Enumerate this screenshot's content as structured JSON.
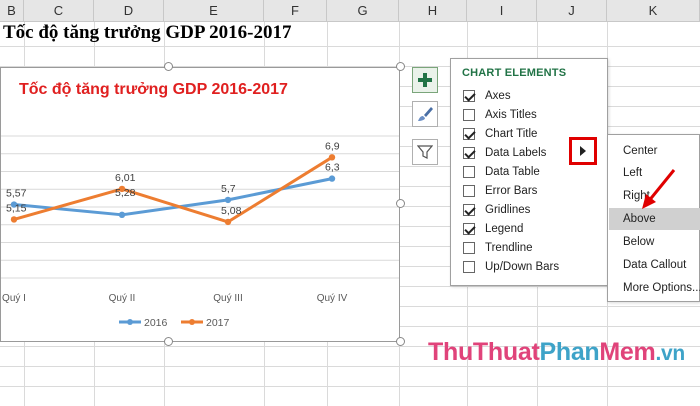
{
  "sheet": {
    "columns": [
      "B",
      "C",
      "D",
      "E",
      "F",
      "G",
      "H",
      "I",
      "J",
      "K"
    ],
    "title_cell": "Tốc độ tăng trưởng GDP 2016-2017"
  },
  "chart": {
    "title": "Tốc độ tăng trưởng GDP 2016-2017",
    "title_color": "#e02020"
  },
  "chart_data": {
    "type": "line",
    "title": "Tốc độ tăng trưởng GDP 2016-2017",
    "categories": [
      "Quý I",
      "Quý II",
      "Quý III",
      "Quý IV"
    ],
    "series": [
      {
        "name": "2016",
        "values": [
          5.57,
          5.28,
          5.7,
          6.3
        ],
        "color": "#5b9bd5",
        "labels": [
          "5,57",
          "",
          "5,7",
          "6,3"
        ]
      },
      {
        "name": "2017",
        "values": [
          5.15,
          6.01,
          5.08,
          6.9
        ],
        "color": "#ed7d31",
        "labels": [
          "5,15",
          "6,01",
          "5,08",
          "6,9"
        ]
      }
    ],
    "extra_labels": [
      "5,28"
    ],
    "gridlines": true,
    "legend": "bottom"
  },
  "panel": {
    "title": "CHART ELEMENTS",
    "items": [
      {
        "label": "Axes",
        "checked": true
      },
      {
        "label": "Axis Titles",
        "checked": false
      },
      {
        "label": "Chart Title",
        "checked": true
      },
      {
        "label": "Data Labels",
        "checked": true
      },
      {
        "label": "Data Table",
        "checked": false
      },
      {
        "label": "Error Bars",
        "checked": false
      },
      {
        "label": "Gridlines",
        "checked": true
      },
      {
        "label": "Legend",
        "checked": true
      },
      {
        "label": "Trendline",
        "checked": false
      },
      {
        "label": "Up/Down Bars",
        "checked": false
      }
    ]
  },
  "submenu": {
    "items": [
      "Center",
      "Left",
      "Right",
      "Above",
      "Below",
      "Data Callout",
      "More Options..."
    ],
    "highlighted": "Above"
  },
  "watermark": {
    "part1": "Thu",
    "part2": "Thuat",
    "part3": "Phan",
    "part4": "Mem",
    "part5": ".vn"
  },
  "colors": {
    "accent_green": "#217346",
    "annotation_red": "#e00000"
  }
}
